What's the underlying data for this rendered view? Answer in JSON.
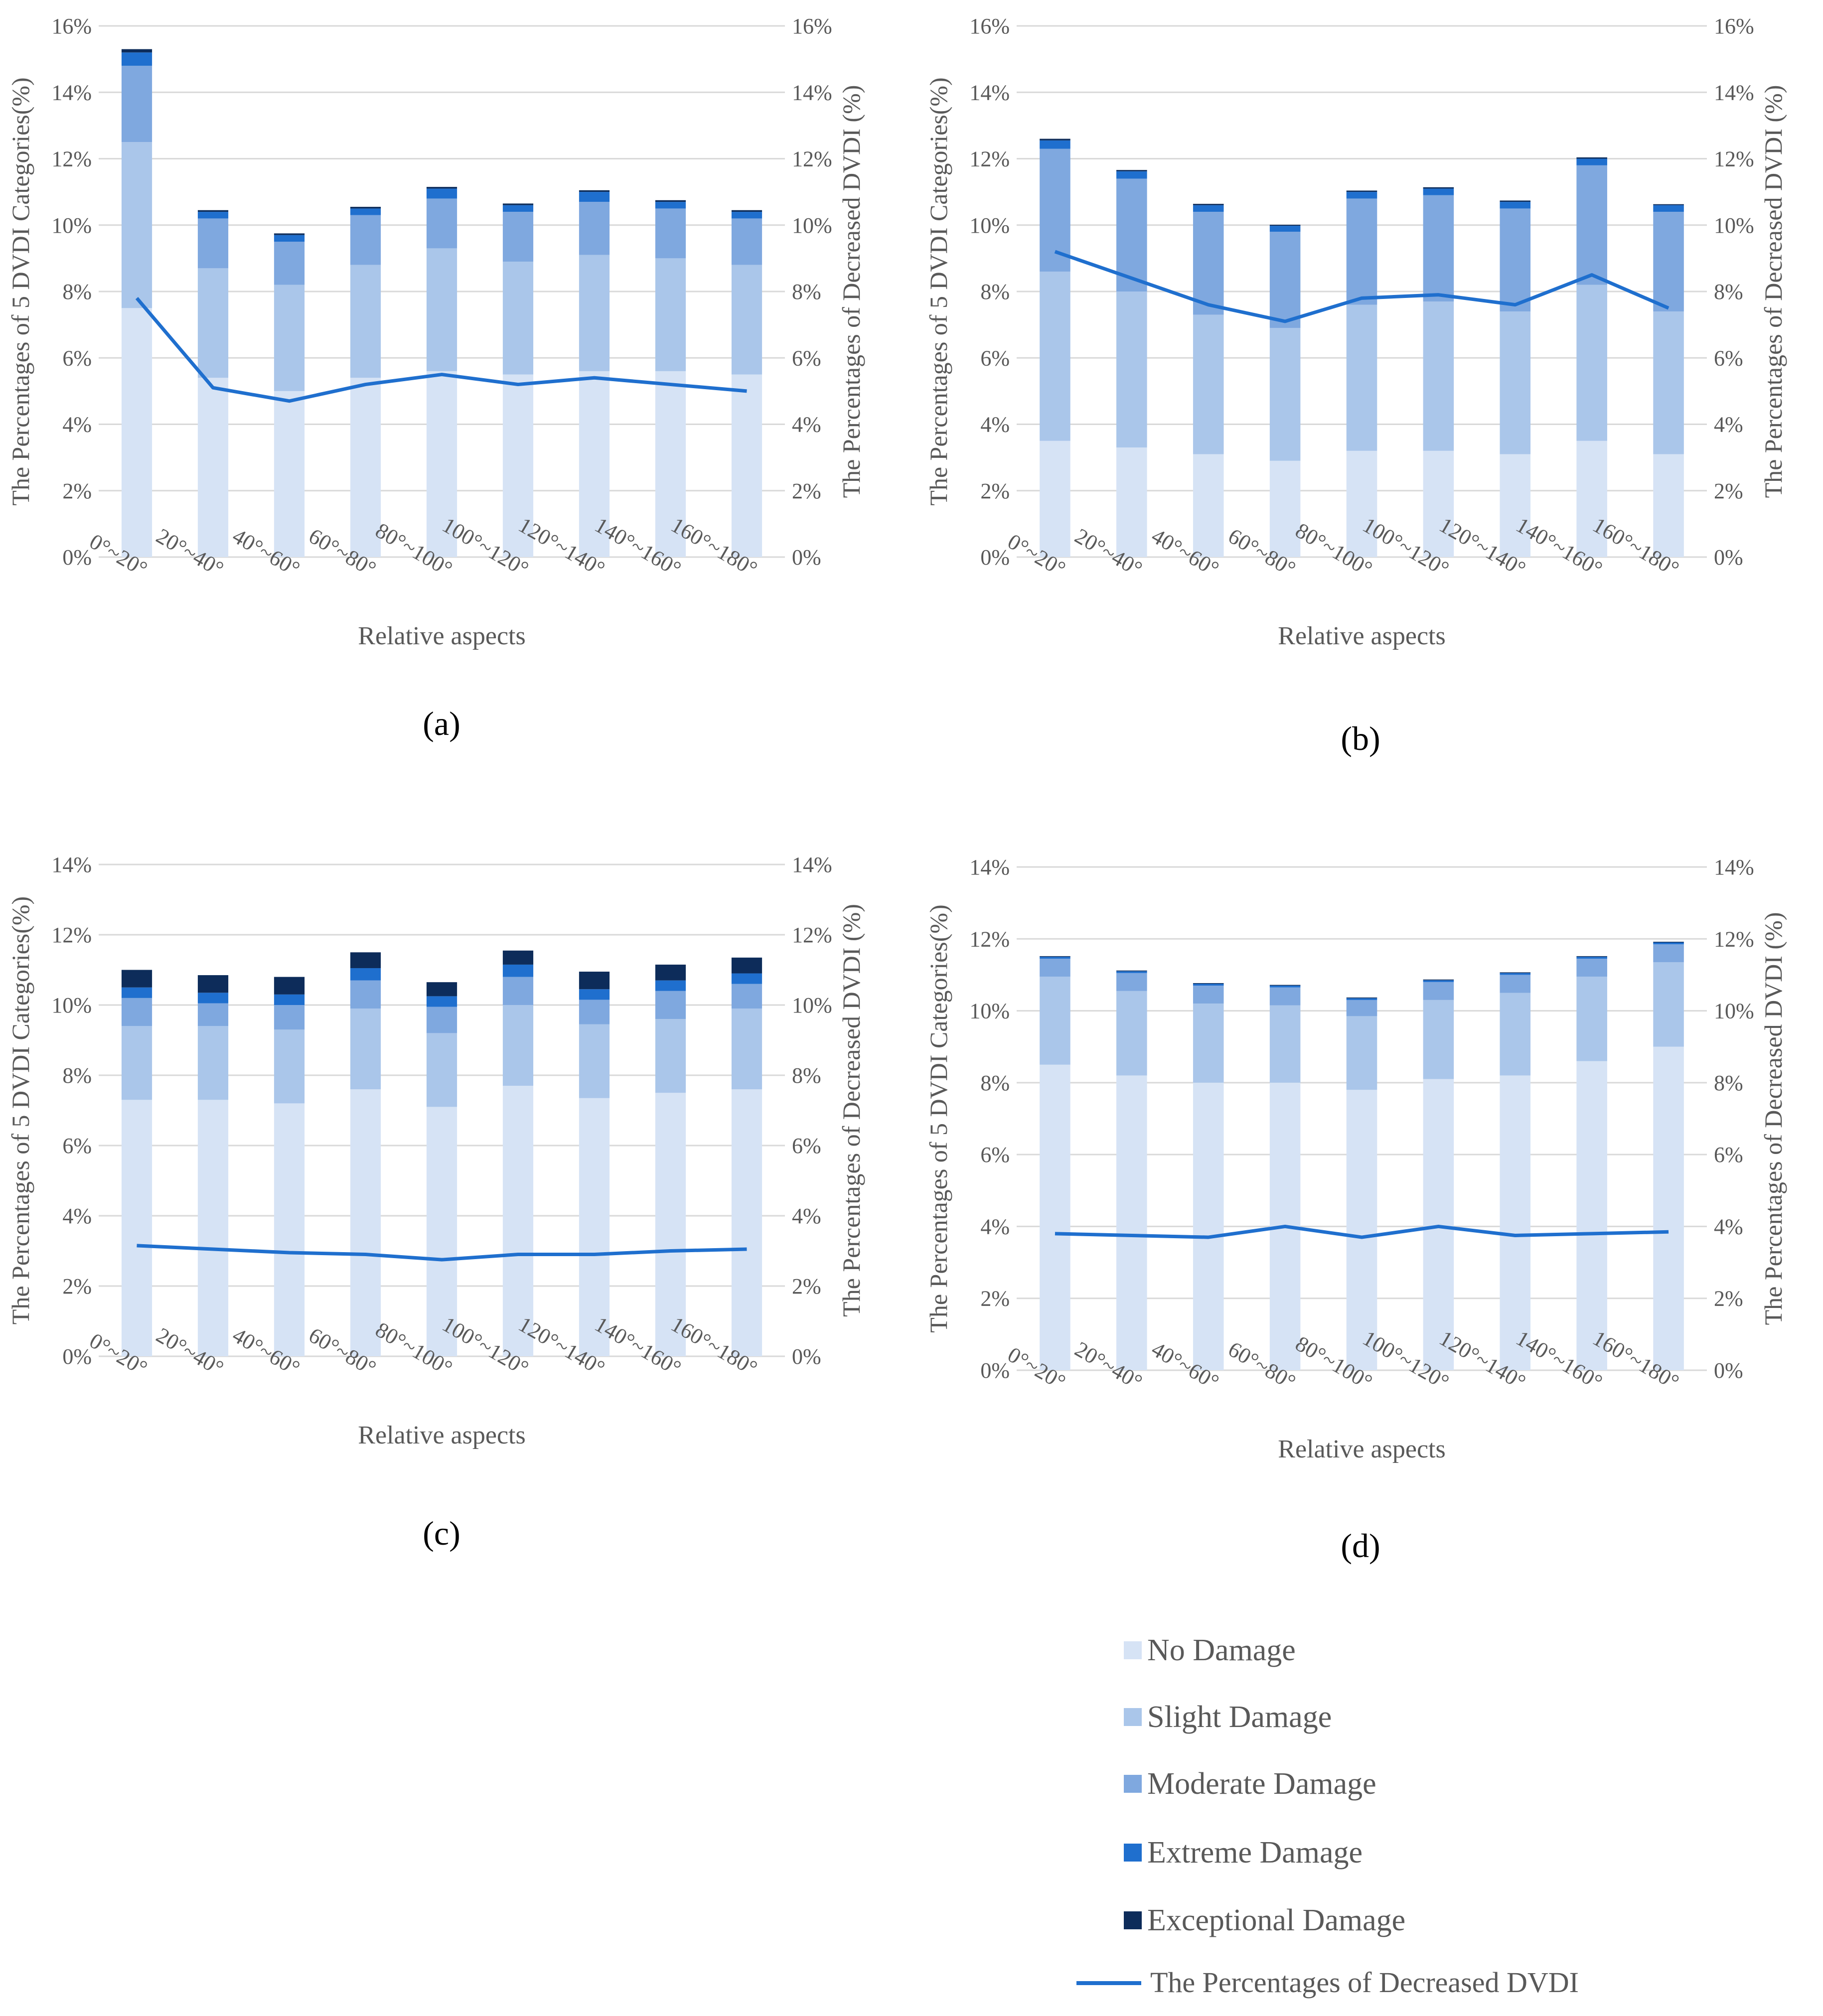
{
  "figure": {
    "subfigure_labels": [
      "(a)",
      "(b)",
      "(c)",
      "(d)"
    ]
  },
  "legend": {
    "items": [
      {
        "name": "No Damage",
        "color": "#d6e3f5",
        "kind": "box"
      },
      {
        "name": "Slight Damage",
        "color": "#aac6ea",
        "kind": "box"
      },
      {
        "name": "Moderate Damage",
        "color": "#7fa8df",
        "kind": "box"
      },
      {
        "name": "Extreme Damage",
        "color": "#1f6fce",
        "kind": "box"
      },
      {
        "name": "Exceptional Damage",
        "color": "#0d2c5a",
        "kind": "box"
      },
      {
        "name": "The Percentages of Decreased DVDI",
        "color": "#1f6fce",
        "kind": "line"
      }
    ]
  },
  "chart_data": [
    {
      "panel": "(a)",
      "type": "bar",
      "stacked": true,
      "categories": [
        "0°~20°",
        "20°~40°",
        "40°~60°",
        "60°~80°",
        "80°~100°",
        "100°~120°",
        "120°~140°",
        "140°~160°",
        "160°~180°"
      ],
      "series": [
        {
          "name": "No Damage",
          "values": [
            7.5,
            5.4,
            5.0,
            5.4,
            5.6,
            5.5,
            5.6,
            5.6,
            5.5
          ]
        },
        {
          "name": "Slight Damage",
          "values": [
            5.0,
            3.3,
            3.2,
            3.4,
            3.7,
            3.4,
            3.5,
            3.4,
            3.3
          ]
        },
        {
          "name": "Moderate Damage",
          "values": [
            2.3,
            1.5,
            1.3,
            1.5,
            1.5,
            1.5,
            1.6,
            1.5,
            1.4
          ]
        },
        {
          "name": "Extreme Damage",
          "values": [
            0.4,
            0.2,
            0.2,
            0.2,
            0.3,
            0.2,
            0.3,
            0.2,
            0.2
          ]
        },
        {
          "name": "Exceptional Damage",
          "values": [
            0.1,
            0.05,
            0.05,
            0.05,
            0.05,
            0.05,
            0.05,
            0.05,
            0.05
          ]
        }
      ],
      "line": {
        "name": "The Percentages of Decreased DVDI",
        "values": [
          7.8,
          5.1,
          4.7,
          5.2,
          5.5,
          5.2,
          5.4,
          5.2,
          5.0
        ]
      },
      "ylim": [
        0,
        16
      ],
      "yticks": [
        "0%",
        "2%",
        "4%",
        "6%",
        "8%",
        "10%",
        "12%",
        "14%",
        "16%"
      ],
      "xlabel": "Relative aspects",
      "ylabel": "The Percentages of 5 DVDI Categories(%)",
      "y2label": "The Percentages of Decreased DVDI (%)"
    },
    {
      "panel": "(b)",
      "type": "bar",
      "stacked": true,
      "categories": [
        "0°~20°",
        "20°~40°",
        "40°~60°",
        "60°~80°",
        "80°~100°",
        "100°~120°",
        "120°~140°",
        "140°~160°",
        "160°~180°"
      ],
      "series": [
        {
          "name": "No Damage",
          "values": [
            3.5,
            3.3,
            3.1,
            2.9,
            3.2,
            3.2,
            3.1,
            3.5,
            3.1
          ]
        },
        {
          "name": "Slight Damage",
          "values": [
            5.1,
            4.7,
            4.2,
            4.0,
            4.4,
            4.5,
            4.3,
            4.7,
            4.3
          ]
        },
        {
          "name": "Moderate Damage",
          "values": [
            3.7,
            3.4,
            3.1,
            2.9,
            3.2,
            3.2,
            3.1,
            3.6,
            3.0
          ]
        },
        {
          "name": "Extreme Damage",
          "values": [
            0.25,
            0.22,
            0.2,
            0.18,
            0.2,
            0.2,
            0.2,
            0.2,
            0.2
          ]
        },
        {
          "name": "Exceptional Damage",
          "values": [
            0.05,
            0.04,
            0.04,
            0.03,
            0.04,
            0.04,
            0.04,
            0.04,
            0.03
          ]
        }
      ],
      "line": {
        "name": "The Percentages of Decreased DVDI",
        "values": [
          9.2,
          8.4,
          7.6,
          7.1,
          7.8,
          7.9,
          7.6,
          8.5,
          7.5
        ]
      },
      "ylim": [
        0,
        16
      ],
      "yticks": [
        "0%",
        "2%",
        "4%",
        "6%",
        "8%",
        "10%",
        "12%",
        "14%",
        "16%"
      ],
      "xlabel": "Relative aspects",
      "ylabel": "The Percentages of 5 DVDI Categories(%)",
      "y2label": "The Percentages of Decreased DVDI (%)"
    },
    {
      "panel": "(c)",
      "type": "bar",
      "stacked": true,
      "categories": [
        "0°~20°",
        "20°~40°",
        "40°~60°",
        "60°~80°",
        "80°~100°",
        "100°~120°",
        "120°~140°",
        "140°~160°",
        "160°~180°"
      ],
      "series": [
        {
          "name": "No Damage",
          "values": [
            7.3,
            7.3,
            7.2,
            7.6,
            7.1,
            7.7,
            7.35,
            7.5,
            7.6
          ]
        },
        {
          "name": "Slight Damage",
          "values": [
            2.1,
            2.1,
            2.1,
            2.3,
            2.1,
            2.3,
            2.1,
            2.1,
            2.3
          ]
        },
        {
          "name": "Moderate Damage",
          "values": [
            0.8,
            0.65,
            0.7,
            0.8,
            0.75,
            0.8,
            0.7,
            0.8,
            0.7
          ]
        },
        {
          "name": "Extreme Damage",
          "values": [
            0.3,
            0.3,
            0.3,
            0.35,
            0.3,
            0.35,
            0.3,
            0.3,
            0.3
          ]
        },
        {
          "name": "Exceptional Damage",
          "values": [
            0.5,
            0.5,
            0.5,
            0.45,
            0.4,
            0.4,
            0.5,
            0.45,
            0.45
          ]
        }
      ],
      "line": {
        "name": "The Percentages of Decreased DVDI",
        "values": [
          3.15,
          3.05,
          2.95,
          2.9,
          2.75,
          2.9,
          2.9,
          3.0,
          3.05
        ]
      },
      "ylim": [
        0,
        14
      ],
      "yticks": [
        "0%",
        "2%",
        "4%",
        "6%",
        "8%",
        "10%",
        "12%",
        "14%"
      ],
      "xlabel": "Relative aspects",
      "ylabel": "The Percentages of 5 DVDI Categories(%)",
      "y2label": "The Percentages of Decreased DVDI (%)"
    },
    {
      "panel": "(d)",
      "type": "bar",
      "stacked": true,
      "categories": [
        "0°~20°",
        "20°~40°",
        "40°~60°",
        "60°~80°",
        "80°~100°",
        "100°~120°",
        "120°~140°",
        "140°~160°",
        "160°~180°"
      ],
      "series": [
        {
          "name": "No Damage",
          "values": [
            8.5,
            8.2,
            8.0,
            8.0,
            7.8,
            8.1,
            8.2,
            8.6,
            9.0
          ]
        },
        {
          "name": "Slight Damage",
          "values": [
            2.45,
            2.35,
            2.2,
            2.15,
            2.05,
            2.2,
            2.3,
            2.35,
            2.35
          ]
        },
        {
          "name": "Moderate Damage",
          "values": [
            0.5,
            0.5,
            0.5,
            0.5,
            0.45,
            0.5,
            0.5,
            0.5,
            0.5
          ]
        },
        {
          "name": "Extreme Damage",
          "values": [
            0.05,
            0.05,
            0.05,
            0.05,
            0.05,
            0.05,
            0.05,
            0.05,
            0.05
          ]
        },
        {
          "name": "Exceptional Damage",
          "values": [
            0.02,
            0.02,
            0.02,
            0.02,
            0.02,
            0.02,
            0.02,
            0.02,
            0.02
          ]
        }
      ],
      "line": {
        "name": "The Percentages of Decreased DVDI",
        "values": [
          3.8,
          3.75,
          3.7,
          4.0,
          3.7,
          4.0,
          3.75,
          3.8,
          3.85
        ]
      },
      "ylim": [
        0,
        14
      ],
      "yticks": [
        "0%",
        "2%",
        "4%",
        "6%",
        "8%",
        "10%",
        "12%",
        "14%"
      ],
      "xlabel": "Relative aspects",
      "ylabel": "The Percentages of 5 DVDI Categories(%)",
      "y2label": "The Percentages of Decreased DVDI (%)"
    }
  ]
}
